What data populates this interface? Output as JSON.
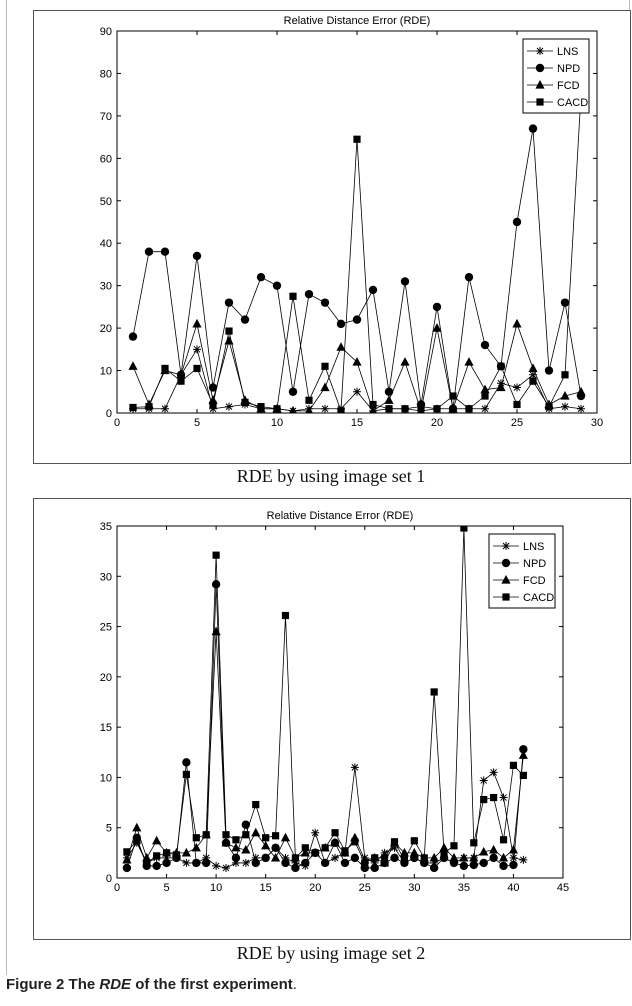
{
  "chart_data": [
    {
      "type": "line",
      "title": "Relative Distance Error (RDE)",
      "caption": "RDE by using image set 1",
      "xlim": [
        0,
        30
      ],
      "ylim": [
        0,
        90
      ],
      "xticks": [
        0,
        5,
        10,
        15,
        20,
        25,
        30
      ],
      "yticks": [
        0,
        10,
        20,
        30,
        40,
        50,
        60,
        70,
        80,
        90
      ],
      "x": [
        1,
        2,
        3,
        4,
        5,
        6,
        7,
        8,
        9,
        10,
        11,
        12,
        13,
        14,
        15,
        16,
        17,
        18,
        19,
        20,
        21,
        22,
        23,
        24,
        25,
        26,
        27,
        28,
        29
      ],
      "legend": "top-right",
      "series": [
        {
          "name": "LNS",
          "marker": "star",
          "values": [
            1,
            1,
            1,
            9,
            15,
            1,
            1.5,
            2,
            1,
            1,
            0.5,
            1,
            1,
            1,
            5,
            0.5,
            1,
            1,
            0.5,
            1,
            1,
            1,
            1,
            7,
            6,
            9,
            1,
            1.5,
            1
          ]
        },
        {
          "name": "NPD",
          "marker": "circle",
          "values": [
            18,
            38,
            38,
            9,
            37,
            6,
            26,
            22,
            32,
            30,
            5,
            28,
            26,
            21,
            22,
            29,
            5,
            31,
            2,
            25,
            1,
            32,
            16,
            11,
            45,
            67,
            10,
            26,
            4
          ]
        },
        {
          "name": "FCD",
          "marker": "triangle",
          "values": [
            11,
            2,
            10,
            9,
            21,
            3,
            17,
            3,
            1,
            1,
            0.5,
            0.5,
            6,
            15.5,
            12,
            0.5,
            3,
            12,
            0.5,
            20,
            1,
            12,
            5.5,
            6,
            21,
            10.5,
            2,
            4,
            5
          ]
        },
        {
          "name": "CACD",
          "marker": "square",
          "values": [
            1.3,
            1.5,
            10.5,
            7.5,
            10.5,
            2,
            19.3,
            2.5,
            1.5,
            1,
            27.5,
            3,
            11,
            0.5,
            64.5,
            2,
            1,
            1,
            1.5,
            1,
            4,
            1,
            4,
            11,
            2,
            7.5,
            1.5,
            9,
            75
          ]
        }
      ]
    },
    {
      "type": "line",
      "title": "Relative Distance Error (RDE)",
      "caption": "RDE by using image set 2",
      "xlim": [
        0,
        45
      ],
      "ylim": [
        0,
        35
      ],
      "xticks": [
        0,
        5,
        10,
        15,
        20,
        25,
        30,
        35,
        40,
        45
      ],
      "yticks": [
        0,
        5,
        10,
        15,
        20,
        25,
        30,
        35
      ],
      "x": [
        1,
        2,
        3,
        4,
        5,
        6,
        7,
        8,
        9,
        10,
        11,
        12,
        13,
        14,
        15,
        16,
        17,
        18,
        19,
        20,
        21,
        22,
        23,
        24,
        25,
        26,
        27,
        28,
        29,
        30,
        31,
        32,
        33,
        34,
        35,
        36,
        37,
        38,
        39,
        40,
        41
      ],
      "legend": "top-right",
      "series": [
        {
          "name": "LNS",
          "marker": "star",
          "values": [
            2,
            3.5,
            1.5,
            2,
            2,
            2,
            1.5,
            1.5,
            2,
            1.2,
            1,
            1.5,
            1.5,
            2,
            2,
            3,
            2,
            1.5,
            1.2,
            4.5,
            1.5,
            2,
            2.5,
            11,
            2,
            1.5,
            2.5,
            3,
            1.5,
            2,
            1.5,
            1.5,
            2,
            1.5,
            2,
            2,
            9.7,
            10.5,
            8,
            2,
            1.8
          ]
        },
        {
          "name": "NPD",
          "marker": "circle",
          "values": [
            1,
            4,
            1.2,
            1.2,
            1.5,
            2,
            11.5,
            1.5,
            1.5,
            29.2,
            3.5,
            2,
            5.3,
            1.5,
            2,
            3,
            1.5,
            1,
            1.5,
            2.5,
            1.5,
            3.5,
            1.5,
            2,
            1,
            1,
            1.5,
            2,
            1.5,
            2,
            1.5,
            1,
            2,
            1.5,
            1.2,
            1.3,
            1.5,
            2,
            1.2,
            1.3,
            12.8
          ]
        },
        {
          "name": "FCD",
          "marker": "triangle",
          "values": [
            1.8,
            5,
            2,
            3.7,
            2.5,
            2.5,
            2.5,
            3,
            4.3,
            24.5,
            3.5,
            3,
            2.8,
            4.5,
            3.2,
            2,
            4,
            2,
            2.5,
            2.5,
            3,
            3.5,
            2.5,
            4,
            1.8,
            2,
            1.5,
            3.5,
            2.5,
            2.5,
            2,
            2,
            3,
            2,
            2,
            2,
            2.6,
            2.8,
            2,
            2.8,
            12.2
          ]
        },
        {
          "name": "CACD",
          "marker": "square",
          "values": [
            2.6,
            3.7,
            1.5,
            2.2,
            2.5,
            2.3,
            10.3,
            4,
            4.3,
            32.1,
            4.3,
            3.8,
            4.3,
            7.3,
            4,
            4.2,
            26.1,
            2,
            3,
            2.5,
            3,
            4.5,
            2.7,
            3.6,
            1.5,
            2,
            2,
            3.6,
            1.8,
            3.7,
            2,
            18.5,
            2.5,
            3.2,
            34.8,
            3.5,
            7.8,
            8,
            3.8,
            11.2,
            10.2
          ]
        }
      ]
    }
  ],
  "figure_caption": {
    "figure_label": "Figure 2",
    "prefix": " The ",
    "italic_term": "RDE",
    "suffix": " of the first experiment",
    "end": "."
  }
}
